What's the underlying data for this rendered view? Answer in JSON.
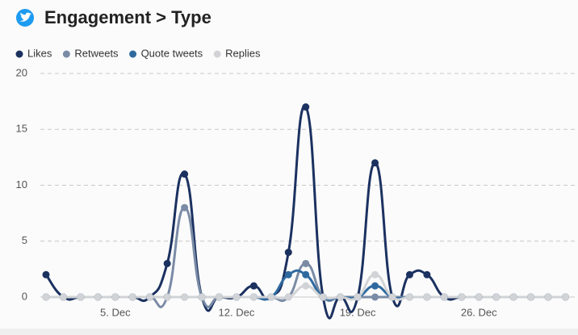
{
  "chart_data": {
    "type": "line",
    "title": "Engagement > Type",
    "categories": [
      null,
      null,
      null,
      null,
      "5. Dec",
      null,
      null,
      null,
      null,
      null,
      null,
      "12. Dec",
      null,
      null,
      null,
      null,
      null,
      null,
      "19. Dec",
      null,
      null,
      null,
      null,
      null,
      null,
      "26. Dec",
      null,
      null,
      null,
      null,
      null
    ],
    "series": [
      {
        "name": "Likes",
        "color": "#1b3160",
        "values": [
          2,
          0,
          0,
          0,
          0,
          0,
          0,
          3,
          11,
          0,
          0,
          0,
          1,
          0,
          4,
          17,
          0,
          0,
          0,
          12,
          0,
          2,
          2,
          0,
          0,
          0,
          0,
          0,
          0,
          0,
          0
        ]
      },
      {
        "name": "Retweets",
        "color": "#7a8ba5",
        "values": [
          0,
          0,
          0,
          0,
          0,
          0,
          0,
          0,
          8,
          0,
          0,
          0,
          0,
          0,
          0,
          3,
          0,
          0,
          0,
          0,
          0,
          0,
          0,
          0,
          0,
          0,
          0,
          0,
          0,
          0,
          0
        ]
      },
      {
        "name": "Quote tweets",
        "color": "#2f6a9f",
        "values": [
          0,
          0,
          0,
          0,
          0,
          0,
          0,
          0,
          0,
          0,
          0,
          0,
          0,
          0,
          2,
          2,
          0,
          0,
          0,
          1,
          0,
          0,
          0,
          0,
          0,
          0,
          0,
          0,
          0,
          0,
          0
        ]
      },
      {
        "name": "Replies",
        "color": "#d2d3d6",
        "values": [
          0,
          0,
          0,
          0,
          0,
          0,
          0,
          0,
          0,
          0,
          0,
          0,
          0,
          0,
          0,
          1,
          0,
          0,
          0,
          2,
          0,
          0,
          0,
          0,
          0,
          0,
          0,
          0,
          0,
          0,
          0
        ]
      }
    ],
    "ylim": [
      0,
      20
    ],
    "yticks": [
      0,
      5,
      10,
      15,
      20
    ],
    "grid": true,
    "legend": "top"
  }
}
